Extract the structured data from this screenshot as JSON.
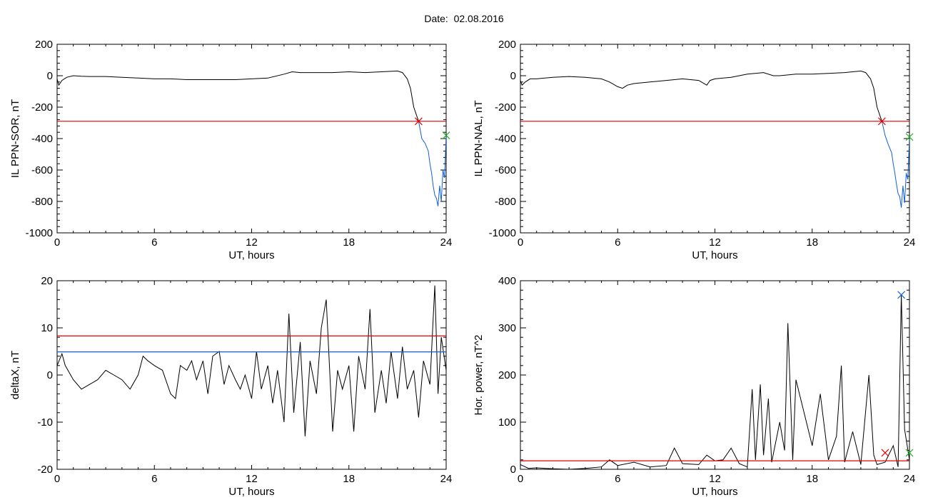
{
  "header": {
    "date_label": "Date:",
    "date_value": "02.08.2016"
  },
  "colors": {
    "red": "#e00000",
    "blue": "#1060d8",
    "green": "#22b122",
    "trace": "#000000"
  },
  "chart_data": [
    {
      "type": "line",
      "title": "",
      "xlabel": "UT, hours",
      "ylabel": "IL PPN-SOR, nT",
      "xlim": [
        0,
        24
      ],
      "ylim": [
        -1000,
        200
      ],
      "xticks": [
        "0",
        "6",
        "12",
        "18",
        "24"
      ],
      "yticks": [
        "-1000",
        "-800",
        "-600",
        "-400",
        "-200",
        "0",
        "200"
      ],
      "grid": false,
      "threshold": {
        "value": -290,
        "color": "red"
      },
      "series": [
        {
          "color": "black",
          "x": [
            0,
            0.1,
            0.3,
            0.6,
            1,
            1.5,
            2,
            3,
            4,
            5,
            6,
            7,
            8,
            9,
            10,
            11,
            12,
            13,
            14,
            14.5,
            15,
            16,
            17,
            18,
            19,
            20,
            21,
            21.3,
            21.6,
            21.8,
            22,
            22.3
          ],
          "y": [
            -20,
            -60,
            -30,
            -10,
            0,
            -3,
            -5,
            -5,
            -10,
            -15,
            -20,
            -20,
            -25,
            -25,
            -25,
            -25,
            -20,
            -15,
            10,
            25,
            20,
            20,
            20,
            25,
            20,
            25,
            30,
            20,
            -20,
            -80,
            -200,
            -290
          ]
        },
        {
          "color": "blue",
          "x": [
            22.3,
            22.5,
            22.7,
            22.9,
            23.0,
            23.1,
            23.2,
            23.3,
            23.4,
            23.5,
            23.6,
            23.7,
            23.8,
            23.9,
            24
          ],
          "y": [
            -290,
            -400,
            -430,
            -480,
            -560,
            -620,
            -700,
            -760,
            -780,
            -830,
            -700,
            -800,
            -600,
            -650,
            -380
          ]
        }
      ],
      "markers": [
        {
          "x": 22.3,
          "y": -290,
          "color": "red"
        },
        {
          "x": 24,
          "y": -380,
          "color": "green"
        }
      ]
    },
    {
      "type": "line",
      "title": "",
      "xlabel": "UT, hours",
      "ylabel": "IL PPN-NAL, nT",
      "xlim": [
        0,
        24
      ],
      "ylim": [
        -1000,
        200
      ],
      "xticks": [
        "0",
        "6",
        "12",
        "18",
        "24"
      ],
      "yticks": [
        "-1000",
        "-800",
        "-600",
        "-400",
        "-200",
        "0",
        "200"
      ],
      "grid": false,
      "threshold": {
        "value": -290,
        "color": "red"
      },
      "series": [
        {
          "color": "black",
          "x": [
            0,
            0.1,
            0.3,
            0.6,
            1,
            2,
            3,
            4,
            5,
            5.5,
            6,
            6.3,
            6.6,
            7,
            8,
            9,
            10,
            11,
            11.5,
            11.7,
            12,
            13,
            14,
            15,
            15.6,
            16,
            17,
            18,
            19,
            20,
            21,
            21.3,
            21.6,
            21.8,
            22,
            22.3
          ],
          "y": [
            -30,
            -60,
            -40,
            -20,
            -20,
            -10,
            -5,
            -10,
            -20,
            -40,
            -70,
            -80,
            -60,
            -50,
            -40,
            -30,
            -20,
            -30,
            -60,
            -30,
            -20,
            -10,
            10,
            20,
            0,
            0,
            10,
            10,
            15,
            20,
            30,
            20,
            -20,
            -80,
            -200,
            -290
          ]
        },
        {
          "color": "blue",
          "x": [
            22.3,
            22.5,
            22.7,
            22.9,
            23.0,
            23.1,
            23.2,
            23.3,
            23.4,
            23.5,
            23.6,
            23.7,
            23.8,
            23.9,
            24
          ],
          "y": [
            -290,
            -380,
            -440,
            -490,
            -560,
            -620,
            -690,
            -750,
            -770,
            -840,
            -700,
            -810,
            -620,
            -660,
            -400
          ]
        }
      ],
      "markers": [
        {
          "x": 22.3,
          "y": -290,
          "color": "red"
        },
        {
          "x": 24,
          "y": -390,
          "color": "green"
        }
      ]
    },
    {
      "type": "line",
      "title": "",
      "xlabel": "UT, hours",
      "ylabel": "deltaX, nT",
      "xlim": [
        0,
        24
      ],
      "ylim": [
        -20,
        20
      ],
      "xticks": [
        "0",
        "6",
        "12",
        "18",
        "24"
      ],
      "yticks": [
        "-20",
        "-10",
        "0",
        "10",
        "20"
      ],
      "grid": false,
      "thresholds": [
        {
          "value": 8.3,
          "color": "red"
        },
        {
          "value": 4.9,
          "color": "blue"
        }
      ],
      "series": [
        {
          "color": "black",
          "x": [
            0,
            0.3,
            0.5,
            1,
            1.5,
            2,
            2.5,
            3,
            3.5,
            4,
            4.5,
            5,
            5.3,
            5.6,
            6,
            6.5,
            7,
            7.3,
            7.6,
            8,
            8.3,
            8.6,
            9,
            9.3,
            9.6,
            10,
            10.3,
            10.6,
            11,
            11.3,
            11.6,
            12,
            12.3,
            12.6,
            13,
            13.3,
            13.6,
            14,
            14.3,
            14.6,
            15,
            15.3,
            15.6,
            16,
            16.3,
            16.6,
            17,
            17.3,
            17.6,
            18,
            18.3,
            18.6,
            19,
            19.3,
            19.6,
            20,
            20.3,
            20.6,
            21,
            21.3,
            21.6,
            22,
            22.3,
            22.6,
            23,
            23.3,
            23.5,
            23.7,
            24
          ],
          "y": [
            2,
            4.5,
            2,
            -1,
            -3,
            -2,
            -1,
            1,
            0,
            -1,
            -3,
            0,
            4,
            3,
            2,
            1,
            -4,
            -5,
            2,
            1,
            3,
            -1,
            3,
            -4,
            4,
            5,
            -2,
            2,
            -1,
            -3,
            0,
            -5,
            5,
            -3,
            2,
            -6,
            1,
            -10,
            13,
            -8,
            7,
            -13,
            3,
            -4,
            10,
            16,
            -12,
            1,
            -3,
            2,
            -12,
            4,
            -3,
            14,
            -8,
            1,
            -6,
            5,
            -5,
            6,
            -3,
            1,
            -9,
            3,
            -2,
            19,
            -4,
            8,
            1
          ]
        }
      ]
    },
    {
      "type": "line",
      "title": "",
      "xlabel": "UT, hours",
      "ylabel": "Hor. power, nT^2",
      "xlim": [
        0,
        24
      ],
      "ylim": [
        0,
        400
      ],
      "xticks": [
        "0",
        "6",
        "12",
        "18",
        "24"
      ],
      "yticks": [
        "0",
        "100",
        "200",
        "300",
        "400"
      ],
      "grid": false,
      "threshold": {
        "value": 18,
        "color": "red"
      },
      "series": [
        {
          "color": "black",
          "x": [
            0,
            0.5,
            1,
            2,
            3,
            4,
            5,
            5.5,
            6,
            7,
            8,
            9,
            9.5,
            10,
            11,
            11.5,
            12,
            12.5,
            13,
            13.5,
            14,
            14.3,
            14.5,
            14.8,
            15,
            15.3,
            15.5,
            16,
            16.3,
            16.5,
            16.8,
            17,
            17.5,
            18,
            18.5,
            19,
            19.5,
            19.8,
            20,
            20.5,
            21,
            21.5,
            21.8,
            22,
            22.5,
            23,
            23.3,
            23.5,
            23.7,
            24
          ],
          "y": [
            10,
            2,
            3,
            1,
            0,
            2,
            5,
            20,
            8,
            15,
            5,
            8,
            45,
            12,
            10,
            30,
            18,
            20,
            45,
            12,
            5,
            170,
            20,
            180,
            30,
            150,
            15,
            100,
            40,
            310,
            20,
            190,
            120,
            50,
            160,
            20,
            70,
            220,
            15,
            80,
            10,
            200,
            30,
            10,
            15,
            50,
            5,
            370,
            85,
            20
          ]
        }
      ],
      "markers": [
        {
          "x": 22.5,
          "y": 35,
          "color": "red"
        },
        {
          "x": 23.5,
          "y": 370,
          "color": "blue"
        },
        {
          "x": 24,
          "y": 35,
          "color": "green"
        }
      ]
    }
  ]
}
